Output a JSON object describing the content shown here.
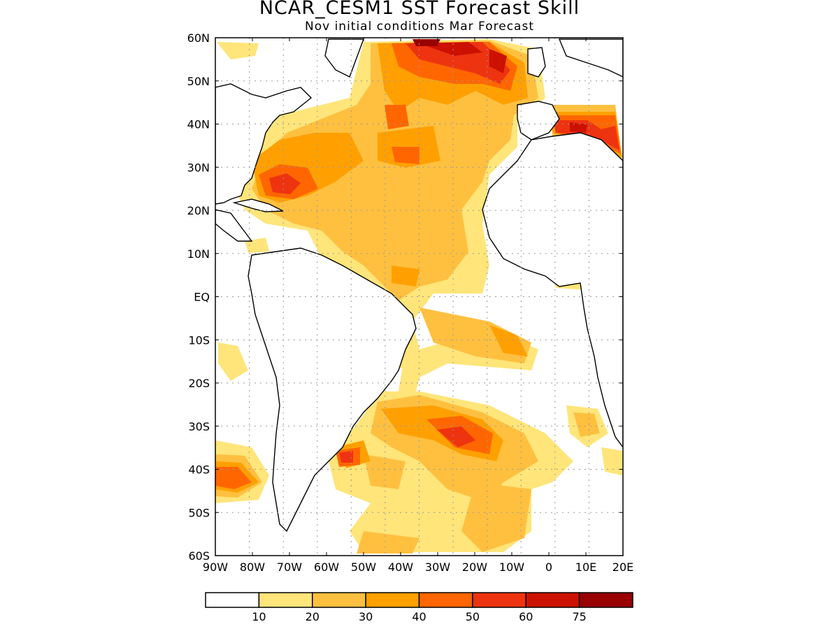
{
  "title": "NCAR_CESM1 SST Forecast Skill",
  "subtitle": "Nov initial conditions  Mar Forecast",
  "lat_labels": [
    "60N",
    "50N",
    "40N",
    "30N",
    "20N",
    "10N",
    "EQ",
    "10S",
    "20S",
    "30S",
    "40S",
    "50S",
    "60S"
  ],
  "lon_labels": [
    "90W",
    "80W",
    "70W",
    "60W",
    "50W",
    "40W",
    "30W",
    "20W",
    "10W",
    "0",
    "10E",
    "20E"
  ],
  "colorbar": {
    "labels": [
      "10",
      "20",
      "30",
      "40",
      "50",
      "60",
      "75"
    ],
    "colors": [
      "#ffffff",
      "#ffe57a",
      "#ffc040",
      "#ffa000",
      "#ff6600",
      "#ee3311",
      "#cc1100",
      "#990000"
    ]
  },
  "colors": {
    "land_outline": "#000000",
    "grid": "#999999"
  }
}
